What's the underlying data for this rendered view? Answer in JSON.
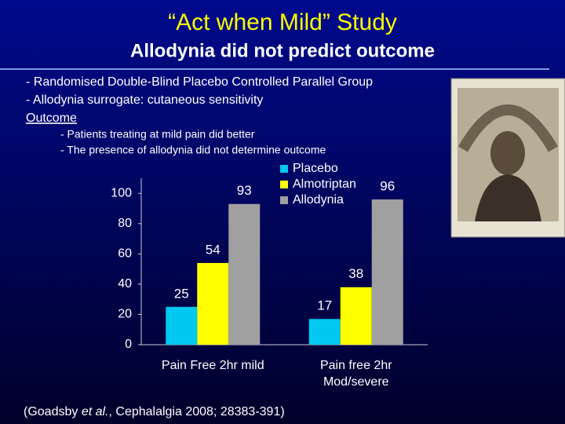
{
  "title": "“Act when Mild” Study",
  "subtitle": "Allodynia did not predict outcome",
  "bullets": [
    "- Randomised Double-Blind Placebo Controlled Parallel Group",
    "- Allodynia surrogate: cutaneous sensitivity"
  ],
  "outcome_heading": "Outcome",
  "outcome_points": [
    "- Patients treating at mild pain did better",
    "- The presence of allodynia did not determine outcome"
  ],
  "citation": [
    "(Goadsby ",
    "et al.",
    ", Cephalalgia 2008; 28383-391)"
  ],
  "chart_data": {
    "type": "bar",
    "categories": [
      "Pain Free 2hr mild",
      "Pain free 2hr Mod/severe"
    ],
    "series": [
      {
        "name": "Placebo",
        "color": "#00c8f0",
        "values": [
          25,
          17
        ]
      },
      {
        "name": "Almotriptan",
        "color": "#ffff00",
        "values": [
          54,
          38
        ]
      },
      {
        "name": "Allodynia",
        "color": "#a0a0a0",
        "values": [
          93,
          96
        ]
      }
    ],
    "ylim": [
      0,
      110
    ],
    "yticks": [
      0,
      20,
      40,
      60,
      80,
      100
    ],
    "grid": false,
    "legend": "top"
  }
}
